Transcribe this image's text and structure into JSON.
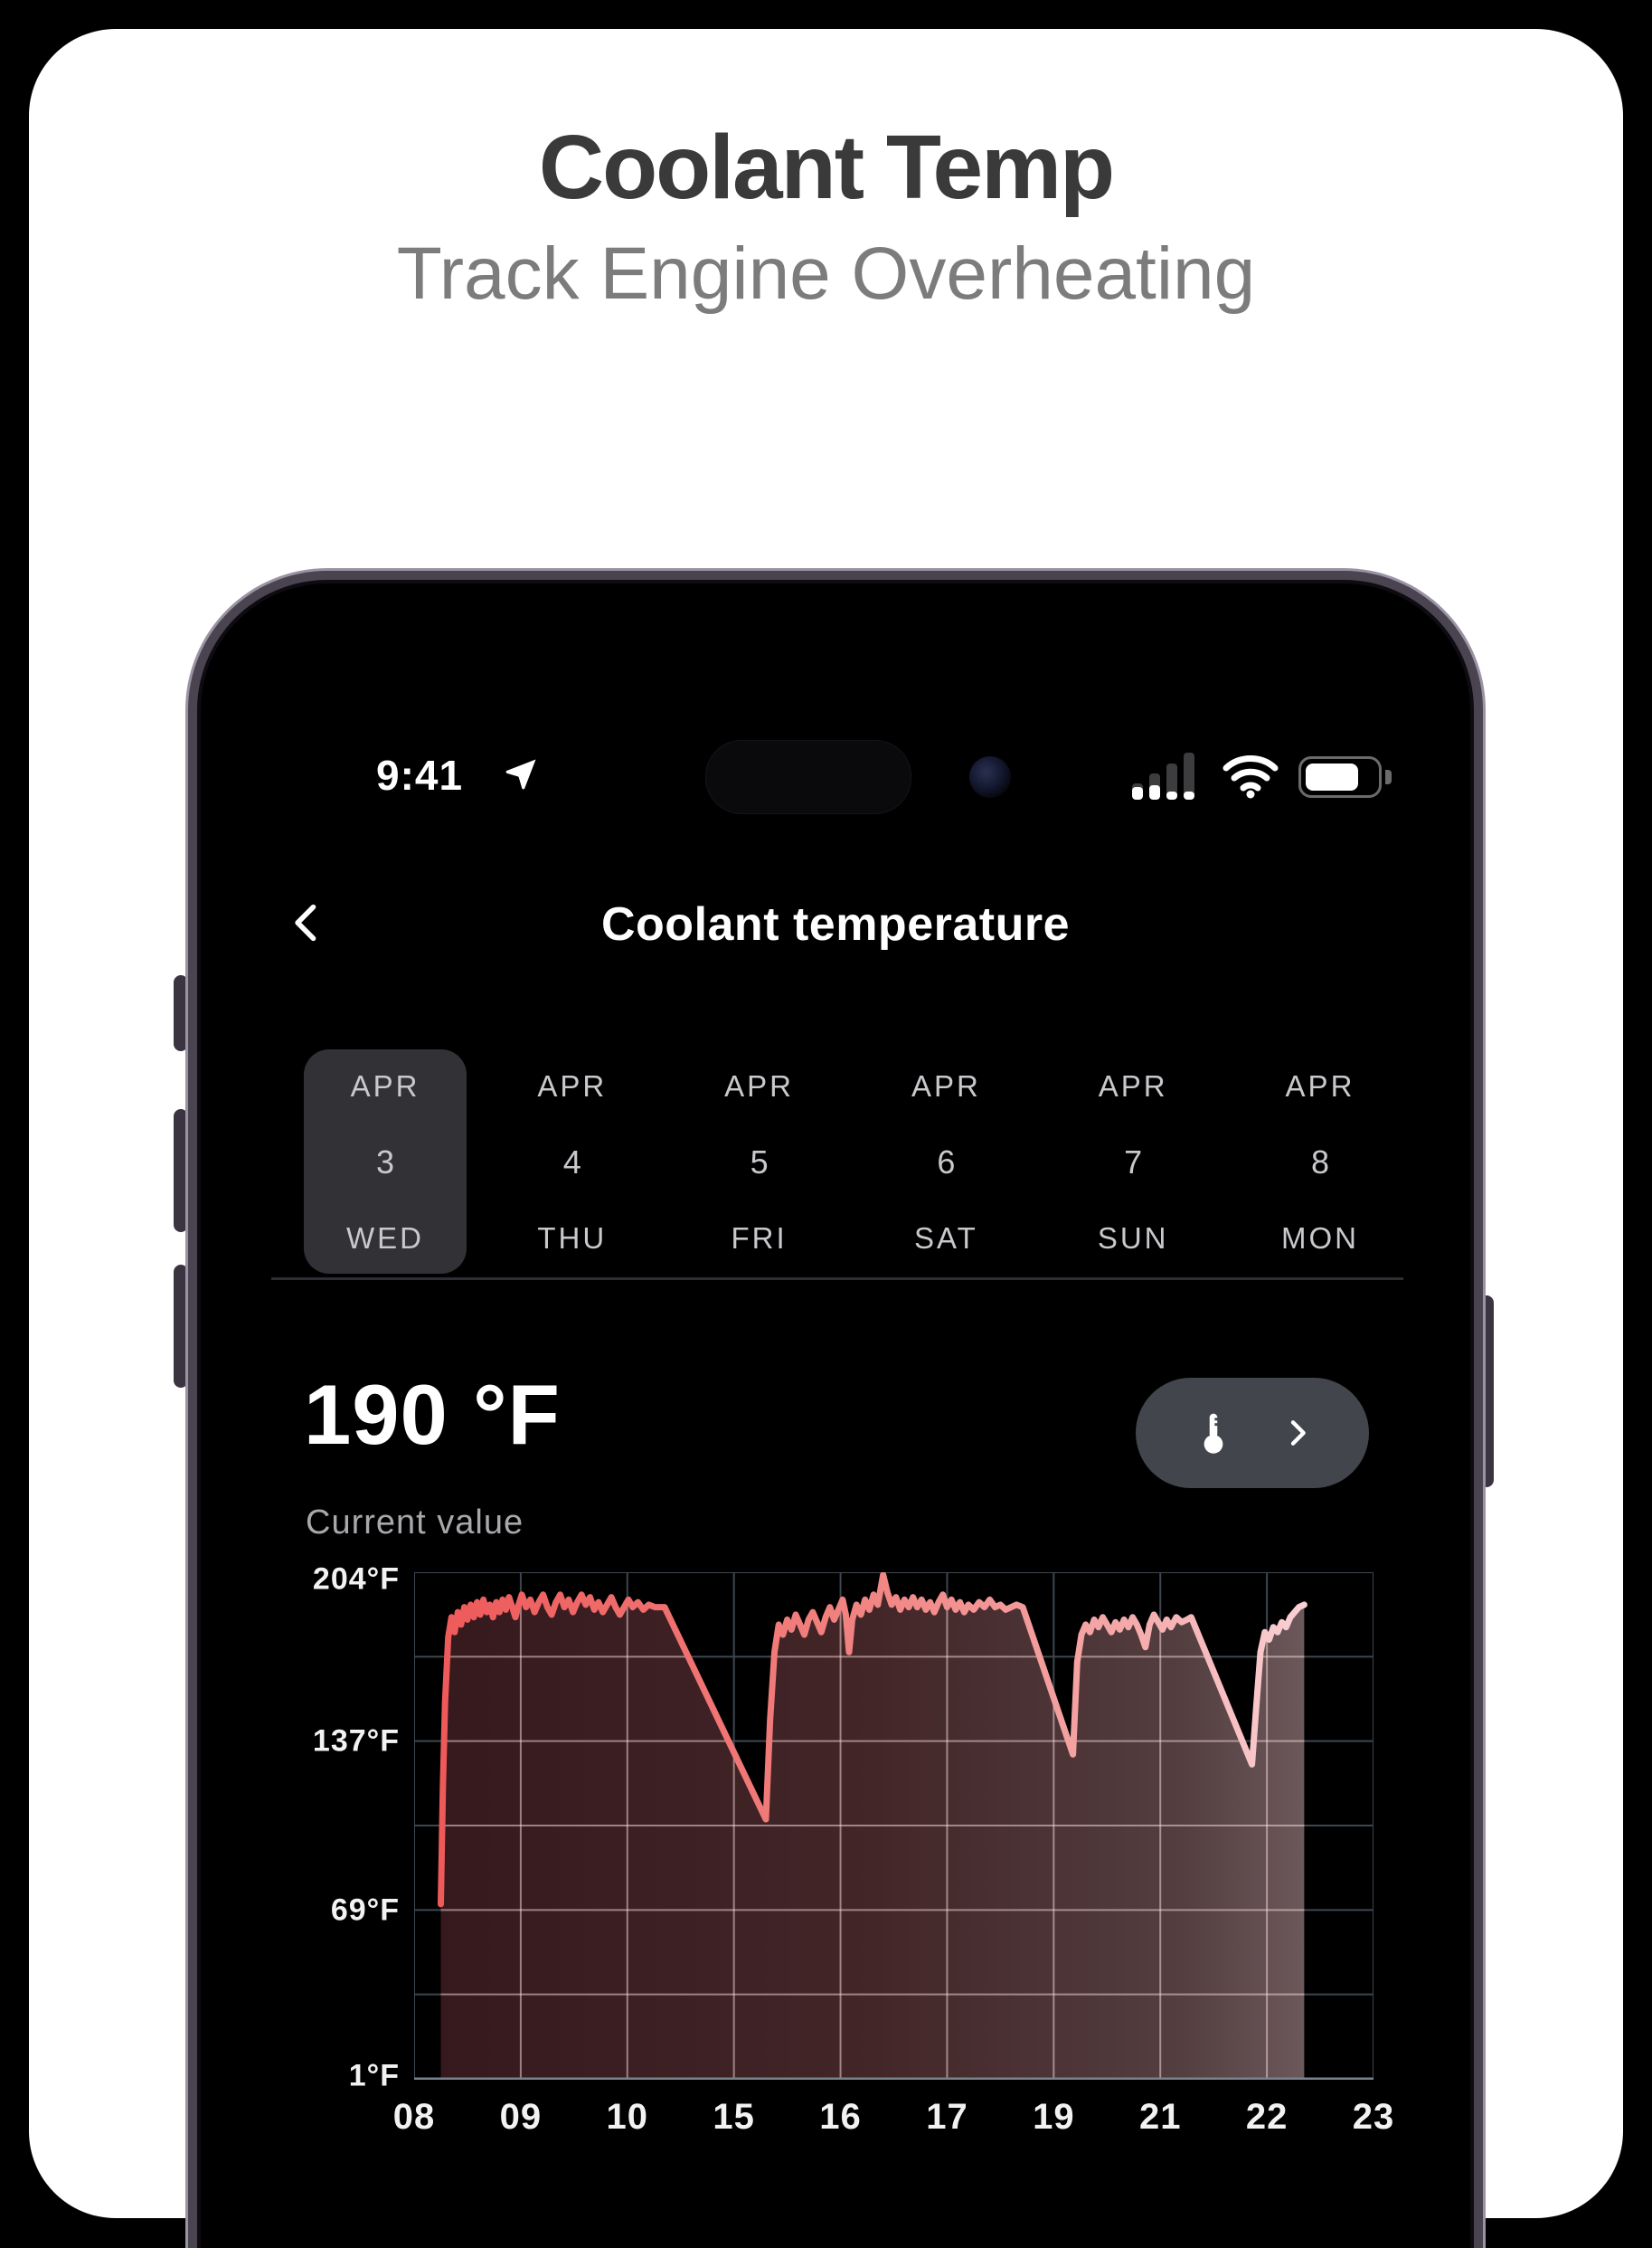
{
  "page": {
    "title": "Coolant Temp",
    "subtitle": "Track Engine Overheating",
    "card_color": "#ffffff",
    "background_color": "#000000"
  },
  "phone": {
    "status_bar": {
      "time": "9:41"
    },
    "header": {
      "title": "Coolant temperature"
    },
    "date_picker": {
      "selected_index": 0,
      "items": [
        {
          "month": "APR",
          "day": "3",
          "weekday": "WED"
        },
        {
          "month": "APR",
          "day": "4",
          "weekday": "THU"
        },
        {
          "month": "APR",
          "day": "5",
          "weekday": "FRI"
        },
        {
          "month": "APR",
          "day": "6",
          "weekday": "SAT"
        },
        {
          "month": "APR",
          "day": "7",
          "weekday": "SUN"
        },
        {
          "month": "APR",
          "day": "8",
          "weekday": "MON"
        }
      ],
      "selected_bg": "#323236"
    },
    "current_reading": {
      "value": "190 °F",
      "label": "Current value"
    },
    "sensor_button_bg": "#42454c"
  },
  "chart_data": {
    "type": "area",
    "title": "Coolant temperature by hour (°F)",
    "x_tick_labels": [
      "08",
      "09",
      "10",
      "15",
      "16",
      "17",
      "19",
      "21",
      "22",
      "23"
    ],
    "y_tick_labels": [
      "204°F",
      "137°F",
      "69°F",
      "1°F"
    ],
    "ylim": [
      1,
      204
    ],
    "y_gridline_values": [
      204,
      170.2,
      137,
      103.5,
      69,
      35.5,
      1
    ],
    "x_axis_note": "hour-of-day labels, non-contiguous logged hours; x in slot units 0-9 across the 10 tick positions",
    "grid": true,
    "legend": "none",
    "grid_color_outside": "#3d4650",
    "grid_color_inside": "rgba(255,226,226,0.5)",
    "axis_line_color": "#79838d",
    "line_gradient": [
      {
        "offset": 0,
        "color": "#ee5a5a"
      },
      {
        "offset": 0.45,
        "color": "#f0807e"
      },
      {
        "offset": 0.78,
        "color": "#f4a7a7"
      },
      {
        "offset": 1,
        "color": "#f9d0d4"
      }
    ],
    "fill_gradient": [
      {
        "offset": 0,
        "color": "#371a1e"
      },
      {
        "offset": 0.5,
        "color": "#452729"
      },
      {
        "offset": 0.86,
        "color": "#564042"
      },
      {
        "offset": 1,
        "color": "#6f5b5d"
      }
    ],
    "points": [
      [
        0.25,
        71
      ],
      [
        0.27,
        118
      ],
      [
        0.29,
        152
      ],
      [
        0.32,
        178
      ],
      [
        0.35,
        186
      ],
      [
        0.38,
        180
      ],
      [
        0.41,
        188
      ],
      [
        0.44,
        183
      ],
      [
        0.47,
        190
      ],
      [
        0.5,
        185
      ],
      [
        0.53,
        191
      ],
      [
        0.56,
        186
      ],
      [
        0.59,
        192
      ],
      [
        0.62,
        187
      ],
      [
        0.65,
        193
      ],
      [
        0.68,
        188
      ],
      [
        0.71,
        191
      ],
      [
        0.74,
        186
      ],
      [
        0.77,
        192
      ],
      [
        0.8,
        188
      ],
      [
        0.83,
        193
      ],
      [
        0.86,
        189
      ],
      [
        0.89,
        194
      ],
      [
        0.92,
        190
      ],
      [
        0.95,
        186
      ],
      [
        0.98,
        191
      ],
      [
        1.01,
        195
      ],
      [
        1.05,
        190
      ],
      [
        1.09,
        193
      ],
      [
        1.13,
        188
      ],
      [
        1.17,
        192
      ],
      [
        1.21,
        195
      ],
      [
        1.25,
        190
      ],
      [
        1.29,
        187
      ],
      [
        1.33,
        192
      ],
      [
        1.37,
        195
      ],
      [
        1.41,
        190
      ],
      [
        1.45,
        193
      ],
      [
        1.49,
        188
      ],
      [
        1.53,
        192
      ],
      [
        1.57,
        195
      ],
      [
        1.61,
        191
      ],
      [
        1.65,
        194
      ],
      [
        1.69,
        189
      ],
      [
        1.73,
        192
      ],
      [
        1.77,
        188
      ],
      [
        1.81,
        191
      ],
      [
        1.85,
        194
      ],
      [
        1.89,
        190
      ],
      [
        1.93,
        187
      ],
      [
        1.97,
        190
      ],
      [
        2.01,
        193
      ],
      [
        2.05,
        190
      ],
      [
        2.1,
        192
      ],
      [
        2.15,
        189
      ],
      [
        2.2,
        191
      ],
      [
        2.26,
        190
      ],
      [
        2.35,
        190
      ],
      [
        3.3,
        105
      ],
      [
        3.34,
        145
      ],
      [
        3.38,
        172
      ],
      [
        3.42,
        183
      ],
      [
        3.46,
        179
      ],
      [
        3.5,
        185
      ],
      [
        3.54,
        181
      ],
      [
        3.58,
        187
      ],
      [
        3.62,
        183
      ],
      [
        3.66,
        179
      ],
      [
        3.7,
        185
      ],
      [
        3.74,
        188
      ],
      [
        3.78,
        184
      ],
      [
        3.82,
        180
      ],
      [
        3.86,
        186
      ],
      [
        3.9,
        190
      ],
      [
        3.94,
        185
      ],
      [
        3.98,
        189
      ],
      [
        4.02,
        193
      ],
      [
        4.05,
        187
      ],
      [
        4.08,
        172
      ],
      [
        4.11,
        185
      ],
      [
        4.15,
        191
      ],
      [
        4.19,
        187
      ],
      [
        4.23,
        193
      ],
      [
        4.27,
        189
      ],
      [
        4.31,
        195
      ],
      [
        4.35,
        191
      ],
      [
        4.4,
        203
      ],
      [
        4.44,
        196
      ],
      [
        4.48,
        191
      ],
      [
        4.52,
        194
      ],
      [
        4.56,
        189
      ],
      [
        4.6,
        193
      ],
      [
        4.64,
        190
      ],
      [
        4.68,
        194
      ],
      [
        4.72,
        190
      ],
      [
        4.76,
        193
      ],
      [
        4.8,
        189
      ],
      [
        4.84,
        192
      ],
      [
        4.88,
        188
      ],
      [
        4.92,
        192
      ],
      [
        4.96,
        195
      ],
      [
        5.0,
        190
      ],
      [
        5.04,
        193
      ],
      [
        5.08,
        189
      ],
      [
        5.12,
        192
      ],
      [
        5.16,
        188
      ],
      [
        5.2,
        191
      ],
      [
        5.25,
        189
      ],
      [
        5.3,
        192
      ],
      [
        5.35,
        190
      ],
      [
        5.4,
        193
      ],
      [
        5.45,
        190
      ],
      [
        5.5,
        191
      ],
      [
        5.55,
        189
      ],
      [
        5.6,
        190
      ],
      [
        5.65,
        191
      ],
      [
        5.71,
        190
      ],
      [
        6.18,
        131
      ],
      [
        6.22,
        168
      ],
      [
        6.26,
        179
      ],
      [
        6.3,
        183
      ],
      [
        6.34,
        180
      ],
      [
        6.38,
        185
      ],
      [
        6.42,
        182
      ],
      [
        6.46,
        186
      ],
      [
        6.5,
        183
      ],
      [
        6.54,
        180
      ],
      [
        6.58,
        184
      ],
      [
        6.62,
        181
      ],
      [
        6.66,
        185
      ],
      [
        6.7,
        182
      ],
      [
        6.74,
        186
      ],
      [
        6.78,
        183
      ],
      [
        6.82,
        179
      ],
      [
        6.86,
        174
      ],
      [
        6.9,
        183
      ],
      [
        6.94,
        187
      ],
      [
        6.98,
        184
      ],
      [
        7.02,
        181
      ],
      [
        7.06,
        185
      ],
      [
        7.1,
        182
      ],
      [
        7.15,
        186
      ],
      [
        7.2,
        184
      ],
      [
        7.25,
        185
      ],
      [
        7.29,
        186
      ],
      [
        7.86,
        127
      ],
      [
        7.9,
        150
      ],
      [
        7.94,
        172
      ],
      [
        7.98,
        180
      ],
      [
        8.02,
        177
      ],
      [
        8.06,
        182
      ],
      [
        8.1,
        180
      ],
      [
        8.14,
        184
      ],
      [
        8.18,
        182
      ],
      [
        8.22,
        186
      ],
      [
        8.26,
        188
      ],
      [
        8.3,
        190
      ],
      [
        8.35,
        191
      ]
    ]
  }
}
